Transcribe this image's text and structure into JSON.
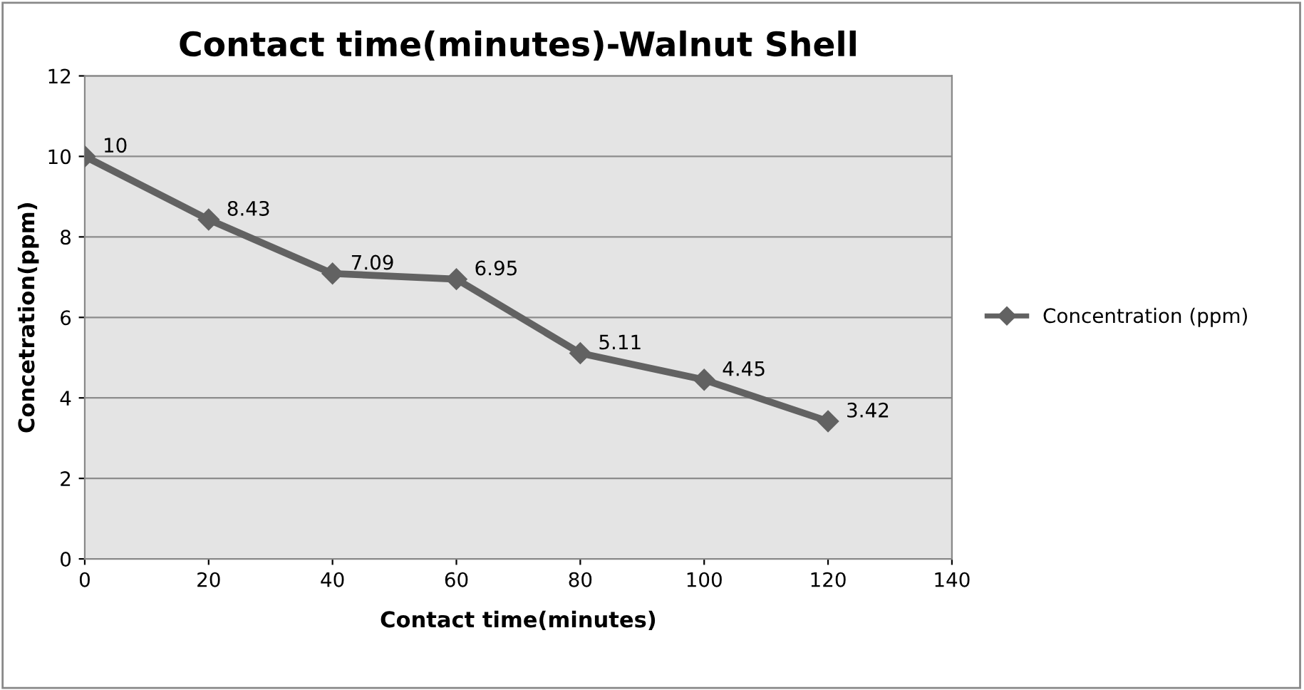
{
  "chart_data": {
    "type": "line",
    "title": "Contact time(minutes)-Walnut Shell",
    "xlabel": "Contact time(minutes)",
    "ylabel": "Concetration(ppm)",
    "x": [
      0,
      20,
      40,
      60,
      80,
      100,
      120
    ],
    "series": [
      {
        "name": "Concentration (ppm)",
        "color": "#626262",
        "values": [
          10,
          8.43,
          7.09,
          6.95,
          5.11,
          4.45,
          3.42
        ]
      }
    ],
    "xlim": [
      0,
      140
    ],
    "xticks": [
      0,
      20,
      40,
      60,
      80,
      100,
      120,
      140
    ],
    "ylim": [
      0,
      12
    ],
    "yticks": [
      0,
      2,
      4,
      6,
      8,
      10,
      12
    ],
    "grid": "y",
    "legend": "right",
    "marker": "diamond",
    "line_style": "solid",
    "data_labels": true
  }
}
